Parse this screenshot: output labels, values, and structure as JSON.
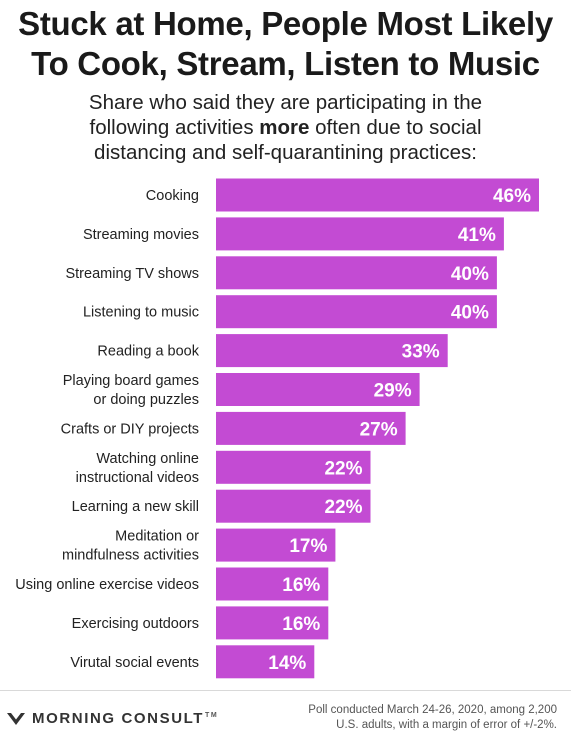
{
  "title": {
    "line1": "Stuck at Home, People Most Likely",
    "line2": "To Cook, Stream, Listen to Music"
  },
  "subtitle": {
    "line1": "Share who said they are participating in the",
    "line2_before": "following activities ",
    "line2_bold": "more",
    "line2_after": " often due to social",
    "line3": "distancing and self-quarantining practices:"
  },
  "chart_data": {
    "type": "bar",
    "orientation": "horizontal",
    "categories": [
      [
        "Cooking"
      ],
      [
        "Streaming movies"
      ],
      [
        "Streaming TV shows"
      ],
      [
        "Listening to music"
      ],
      [
        "Reading a book"
      ],
      [
        "Playing board games",
        "or doing puzzles"
      ],
      [
        "Crafts or DIY projects"
      ],
      [
        "Watching online",
        "instructional videos"
      ],
      [
        "Learning a new skill"
      ],
      [
        "Meditation or",
        "mindfulness activities"
      ],
      [
        "Using online exercise videos"
      ],
      [
        "Exercising outdoors"
      ],
      [
        "Virutal social events"
      ]
    ],
    "values": [
      46,
      41,
      40,
      40,
      33,
      29,
      27,
      22,
      22,
      17,
      16,
      16,
      14
    ],
    "value_labels": [
      "46%",
      "41%",
      "40%",
      "40%",
      "33%",
      "29%",
      "27%",
      "22%",
      "22%",
      "17%",
      "16%",
      "16%",
      "14%"
    ],
    "unit": "%",
    "bar_color": "#c34bd3",
    "xlim": [
      0,
      46
    ],
    "grid": false,
    "legend": "none"
  },
  "footer": {
    "logo_text": "MORNING CONSULT",
    "logo_mark": "TM",
    "logo_icon": "morning-consult-chevron-icon",
    "note_line1": "Poll conducted March 24-26, 2020, among 2,200",
    "note_line2": "U.S. adults, with a margin of error of +/-2%."
  }
}
